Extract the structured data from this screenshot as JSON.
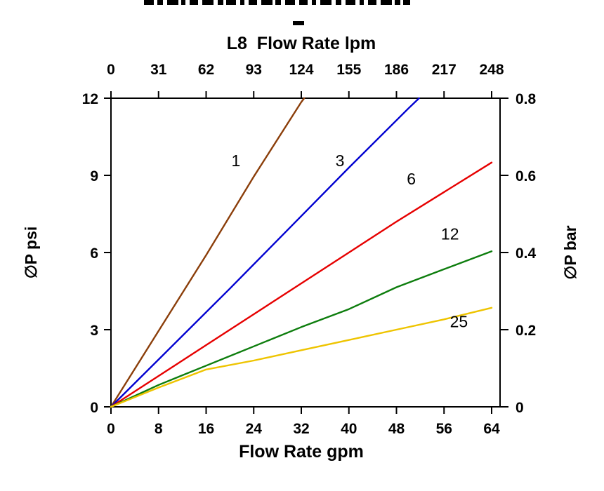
{
  "chart_data": {
    "type": "line",
    "top_axis_title": "L8  Flow Rate lpm",
    "bottom_axis_title": "Flow Rate gpm",
    "left_axis_title": "∅P psi",
    "right_axis_title": "∅P bar",
    "x_bottom": {
      "unit": "gpm",
      "range": [
        0,
        64
      ],
      "ticks": [
        0,
        8,
        16,
        24,
        32,
        40,
        48,
        56,
        64
      ]
    },
    "x_top": {
      "unit": "lpm",
      "range": [
        0,
        248
      ],
      "ticks": [
        0,
        31,
        62,
        93,
        124,
        155,
        186,
        217,
        248
      ]
    },
    "y_left": {
      "unit": "psi",
      "range": [
        0,
        12
      ],
      "ticks": [
        0,
        3,
        6,
        9,
        12
      ]
    },
    "y_right": {
      "unit": "bar",
      "range": [
        0,
        0.8
      ],
      "ticks": [
        0,
        0.2,
        0.4,
        0.6,
        0.8
      ]
    },
    "grid": false,
    "legend_position": "inline-labels",
    "series": [
      {
        "name": "1",
        "color": "#8b3e0a",
        "points": [
          [
            0,
            0
          ],
          [
            8,
            2.95
          ],
          [
            16,
            5.9
          ],
          [
            24,
            8.95
          ],
          [
            32,
            11.85
          ],
          [
            32.5,
            12
          ]
        ],
        "label": {
          "text": "1",
          "x": 21,
          "y": 9.35
        }
      },
      {
        "name": "3",
        "color": "#0000d0",
        "points": [
          [
            0,
            0
          ],
          [
            10,
            2.3
          ],
          [
            20,
            4.6
          ],
          [
            30,
            6.95
          ],
          [
            40,
            9.3
          ],
          [
            50,
            11.6
          ],
          [
            51.8,
            12
          ]
        ],
        "label": {
          "text": "3",
          "x": 38.5,
          "y": 9.35
        }
      },
      {
        "name": "6",
        "color": "#e60000",
        "points": [
          [
            0,
            0
          ],
          [
            8,
            1.2
          ],
          [
            16,
            2.4
          ],
          [
            24,
            3.6
          ],
          [
            32,
            4.8
          ],
          [
            40,
            6.0
          ],
          [
            48,
            7.2
          ],
          [
            56,
            8.35
          ],
          [
            64,
            9.5
          ]
        ],
        "label": {
          "text": "6",
          "x": 50.5,
          "y": 8.65
        }
      },
      {
        "name": "12",
        "color": "#0d7d0d",
        "points": [
          [
            0,
            0
          ],
          [
            8,
            0.85
          ],
          [
            16,
            1.6
          ],
          [
            24,
            2.35
          ],
          [
            32,
            3.1
          ],
          [
            40,
            3.8
          ],
          [
            48,
            4.65
          ],
          [
            56,
            5.35
          ],
          [
            64,
            6.05
          ]
        ],
        "label": {
          "text": "12",
          "x": 57,
          "y": 6.5
        }
      },
      {
        "name": "25",
        "color": "#eec400",
        "points": [
          [
            0,
            0
          ],
          [
            8,
            0.75
          ],
          [
            16,
            1.45
          ],
          [
            24,
            1.8
          ],
          [
            32,
            2.2
          ],
          [
            40,
            2.6
          ],
          [
            48,
            3.0
          ],
          [
            56,
            3.4
          ],
          [
            64,
            3.85
          ]
        ],
        "label": {
          "text": "25",
          "x": 58.5,
          "y": 3.1
        }
      }
    ]
  }
}
